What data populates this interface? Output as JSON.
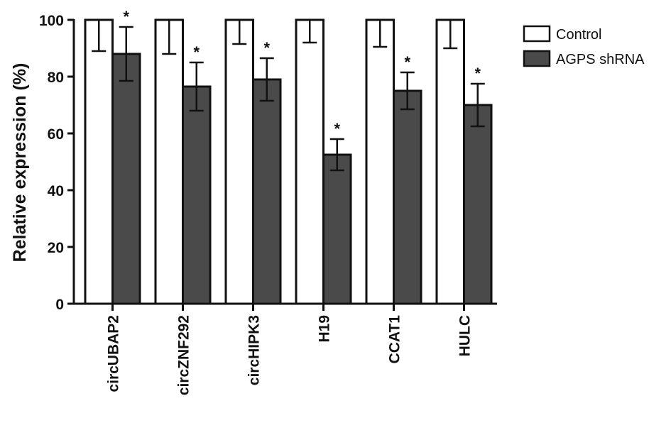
{
  "chart_data": {
    "type": "bar",
    "ylabel": "Relative expression (%)",
    "ylim": [
      0,
      100
    ],
    "yticks": [
      0,
      20,
      40,
      60,
      80,
      100
    ],
    "categories": [
      "circUBAP2",
      "circZNF292",
      "circHIPK3",
      "H19",
      "CCAT1",
      "HULC"
    ],
    "series": [
      {
        "name": "Control",
        "color": "#ffffff",
        "values": [
          100,
          100,
          100,
          100,
          100,
          100
        ],
        "errors": [
          11,
          12,
          8.5,
          8,
          9.5,
          10
        ],
        "significance": [
          "",
          "",
          "",
          "",
          "",
          ""
        ]
      },
      {
        "name": "AGPS shRNA",
        "color": "#4a4a4a",
        "values": [
          88,
          76.5,
          79,
          52.5,
          75,
          70
        ],
        "errors": [
          9.5,
          8.5,
          7.5,
          5.5,
          6.5,
          7.5
        ],
        "significance": [
          "*",
          "*",
          "*",
          "*",
          "*",
          "*"
        ]
      }
    ],
    "legend_position": "top-right",
    "grid": false
  }
}
